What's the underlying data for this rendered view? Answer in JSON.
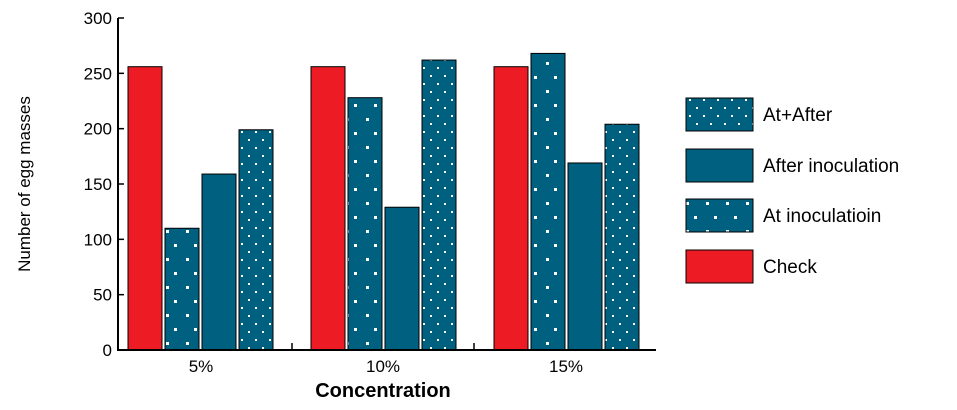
{
  "chart_data": {
    "type": "bar",
    "title": "",
    "xlabel": "Concentration",
    "ylabel": "Number of egg masses",
    "ylim": [
      0,
      300
    ],
    "yticks": [
      "0",
      "50",
      "100",
      "150",
      "200",
      "250",
      "300"
    ],
    "categories": [
      "5%",
      "10%",
      "15%"
    ],
    "series": [
      {
        "name": "Check",
        "color": "#ed1c24",
        "pattern": "solid",
        "values": [
          256,
          256,
          256
        ]
      },
      {
        "name": "At inoculatioin",
        "color": "#00607f",
        "pattern": "sparse-dots",
        "values": [
          110,
          228,
          268
        ]
      },
      {
        "name": "After inoculation",
        "color": "#00607f",
        "pattern": "solid",
        "values": [
          159,
          129,
          169
        ]
      },
      {
        "name": "At+After",
        "color": "#00607f",
        "pattern": "dense-dots",
        "values": [
          199,
          262,
          204
        ]
      }
    ],
    "legend_order": [
      "At+After",
      "After inoculation",
      "At inoculatioin",
      "Check"
    ],
    "legend_position": "right",
    "grid": false
  }
}
